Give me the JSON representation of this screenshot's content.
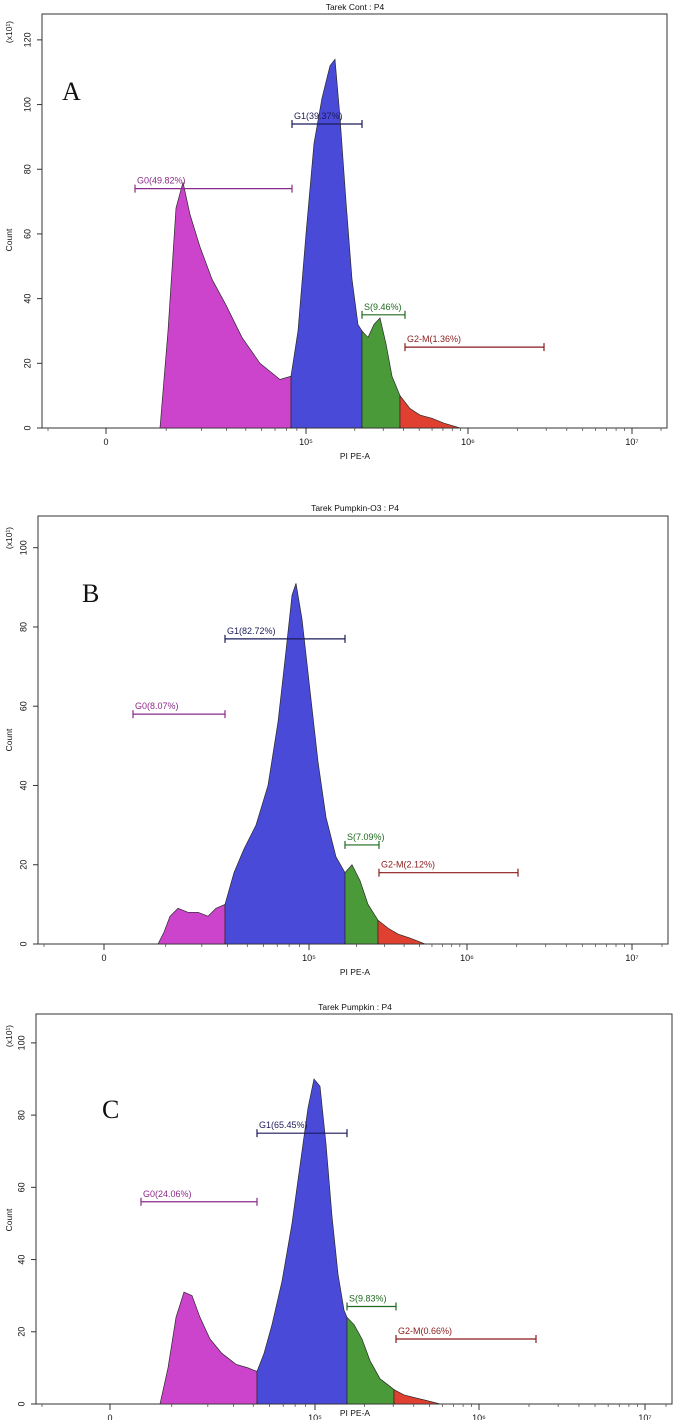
{
  "chart_data": [
    {
      "type": "area",
      "panel_label": "A",
      "title": "Tarek Cont : P4",
      "xlabel": "PI PE-A",
      "ylabel": "Count",
      "y_multiplier": "(x10¹)",
      "ylim": [
        0,
        128
      ],
      "y_ticks": [
        0,
        20,
        40,
        60,
        80,
        100,
        120
      ],
      "x_tick_labels": [
        "0",
        "10⁵",
        "10⁶",
        "10⁷"
      ],
      "peak_count": 114,
      "phases": [
        {
          "name": "G0",
          "label": "G0(49.82%)",
          "percent": 49.82,
          "gate_y": 74,
          "color": "#cc44cc",
          "label_color": "#8a2a8a"
        },
        {
          "name": "G1",
          "label": "G1(39.37%)",
          "percent": 39.37,
          "gate_y": 94,
          "color": "#4a4ad8",
          "label_color": "#1a1a5a"
        },
        {
          "name": "S",
          "label": "S(9.46%)",
          "percent": 9.46,
          "gate_y": 35,
          "color": "#4a9a3a",
          "label_color": "#1e6a1e"
        },
        {
          "name": "G2-M",
          "label": "G2-M(1.36%)",
          "percent": 1.36,
          "gate_y": 25,
          "color": "#e04030",
          "label_color": "#8a1a1a"
        }
      ]
    },
    {
      "type": "area",
      "panel_label": "B",
      "title": "Tarek Pumpkin-O3 : P4",
      "xlabel": "PI PE-A",
      "ylabel": "Count",
      "y_multiplier": "(x10¹)",
      "ylim": [
        0,
        108
      ],
      "y_ticks": [
        0,
        20,
        40,
        60,
        80,
        100
      ],
      "x_tick_labels": [
        "0",
        "10⁵",
        "10⁶",
        "10⁷"
      ],
      "peak_count": 91,
      "phases": [
        {
          "name": "G0",
          "label": "G0(8.07%)",
          "percent": 8.07,
          "gate_y": 58,
          "color": "#cc44cc",
          "label_color": "#8a2a8a"
        },
        {
          "name": "G1",
          "label": "G1(82.72%)",
          "percent": 82.72,
          "gate_y": 77,
          "color": "#4a4ad8",
          "label_color": "#1a1a5a"
        },
        {
          "name": "S",
          "label": "S(7.09%)",
          "percent": 7.09,
          "gate_y": 25,
          "color": "#4a9a3a",
          "label_color": "#1e6a1e"
        },
        {
          "name": "G2-M",
          "label": "G2-M(2.12%)",
          "percent": 2.12,
          "gate_y": 18,
          "color": "#e04030",
          "label_color": "#8a1a1a"
        }
      ]
    },
    {
      "type": "area",
      "panel_label": "C",
      "title": "Tarek Pumpkin : P4",
      "xlabel": "PI PE-A",
      "ylabel": "Count",
      "y_multiplier": "(x10¹)",
      "ylim": [
        0,
        108
      ],
      "y_ticks": [
        0,
        20,
        40,
        60,
        80,
        100
      ],
      "x_tick_labels": [
        "0",
        "10⁵",
        "10⁶",
        "10⁷"
      ],
      "peak_count": 91,
      "phases": [
        {
          "name": "G0",
          "label": "G0(24.06%)",
          "percent": 24.06,
          "gate_y": 56,
          "color": "#cc44cc",
          "label_color": "#8a2a8a"
        },
        {
          "name": "G1",
          "label": "G1(65.45%)",
          "percent": 65.45,
          "gate_y": 75,
          "color": "#4a4ad8",
          "label_color": "#1a1a5a"
        },
        {
          "name": "S",
          "label": "S(9.83%)",
          "percent": 9.83,
          "gate_y": 27,
          "color": "#4a9a3a",
          "label_color": "#1e6a1e"
        },
        {
          "name": "G2-M",
          "label": "G2-M(0.66%)",
          "percent": 0.66,
          "gate_y": 18,
          "color": "#e04030",
          "label_color": "#8a1a1a"
        }
      ]
    }
  ]
}
